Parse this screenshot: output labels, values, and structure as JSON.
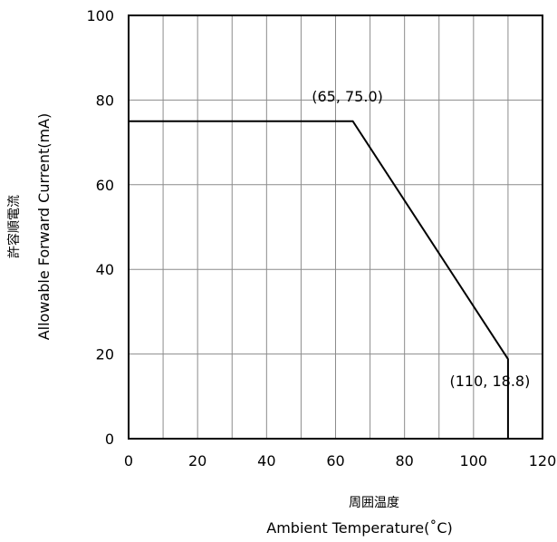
{
  "chart_data": {
    "type": "line",
    "title": "",
    "xlabel_jp": "周囲温度",
    "xlabel": "Ambient Temperature(˚C)",
    "ylabel_jp": "許容順電流",
    "ylabel": "Allowable Forward Current(mA)",
    "xlim": [
      0,
      120
    ],
    "ylim": [
      0,
      100
    ],
    "x_ticks": [
      "0",
      "20",
      "40",
      "60",
      "80",
      "100",
      "120"
    ],
    "y_ticks": [
      "0",
      "20",
      "40",
      "60",
      "80",
      "100"
    ],
    "grid": true,
    "series": [
      {
        "x": [
          0,
          65,
          110,
          110
        ],
        "y": [
          75.0,
          75.0,
          18.8,
          0
        ]
      }
    ],
    "annotations": [
      {
        "text": "(65, 75.0)",
        "x": 65,
        "y": 75.0
      },
      {
        "text": "(110, 18.8)",
        "x": 110,
        "y": 18.8
      }
    ]
  }
}
